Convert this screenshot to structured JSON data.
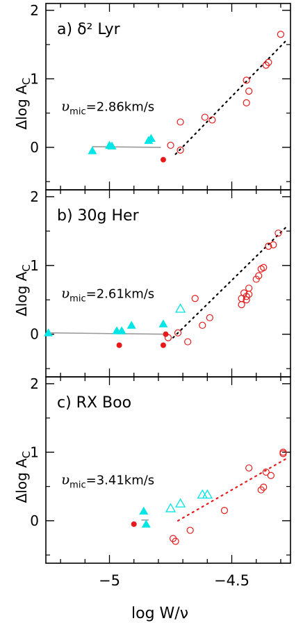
{
  "figure": {
    "xlabel": "log W/ν",
    "x_ticks": [
      -5,
      -4.5
    ],
    "x_tick_labels": [
      "−5",
      "−4.5"
    ]
  },
  "chart_data": [
    {
      "type": "scatter",
      "panel_label": "a)",
      "star_name": "δ² Lyr",
      "vmic_label": "υ",
      "vmic_sub": "mic",
      "vmic_value": "=2.86km/s",
      "ylabel": "Δlog A",
      "ylabel_sub": "C",
      "xlim": [
        -5.26,
        -4.26
      ],
      "ylim": [
        -0.62,
        2.1
      ],
      "y_ticks": [
        0,
        1,
        2
      ],
      "series": [
        {
          "name": "",
          "marker": "filled-triangle",
          "color": "#00e5e5",
          "points": [
            [
              -5.07,
              -0.05
            ],
            [
              -5.0,
              0.03
            ],
            [
              -4.99,
              0.02
            ],
            [
              -4.84,
              0.1
            ],
            [
              -4.83,
              0.13
            ]
          ]
        },
        {
          "name": "",
          "marker": "filled-circle",
          "color": "#e8191b",
          "points": [
            [
              -4.78,
              -0.18
            ]
          ]
        },
        {
          "name": "",
          "marker": "open-circle",
          "color": "#e8191b",
          "points": [
            [
              -4.75,
              0.03
            ],
            [
              -4.71,
              0.37
            ],
            [
              -4.71,
              -0.04
            ],
            [
              -4.61,
              0.44
            ],
            [
              -4.58,
              0.4
            ],
            [
              -4.44,
              0.98
            ],
            [
              -4.43,
              0.82
            ],
            [
              -4.44,
              0.65
            ],
            [
              -4.36,
              1.2
            ],
            [
              -4.35,
              1.24
            ],
            [
              -4.3,
              1.65
            ]
          ]
        }
      ],
      "fits": [
        {
          "style": "solid",
          "color": "#999999",
          "points": [
            [
              -5.07,
              0.01
            ],
            [
              -4.79,
              0.0
            ]
          ]
        },
        {
          "style": "dotted",
          "color": "#000000",
          "points": [
            [
              -4.73,
              -0.1
            ],
            [
              -4.28,
              1.55
            ]
          ]
        }
      ]
    },
    {
      "type": "scatter",
      "panel_label": "b)",
      "star_name": "30g Her",
      "vmic_label": "υ",
      "vmic_sub": "mic",
      "vmic_value": "=2.61km/s",
      "ylabel": "Δlog A",
      "ylabel_sub": "C",
      "xlim": [
        -5.26,
        -4.26
      ],
      "ylim": [
        -0.62,
        2.1
      ],
      "y_ticks": [
        0,
        1,
        2
      ],
      "series": [
        {
          "name": "",
          "marker": "filled-triangle",
          "color": "#00e5e5",
          "points": [
            [
              -5.25,
              0.02
            ],
            [
              -4.97,
              0.05
            ],
            [
              -4.95,
              0.05
            ],
            [
              -4.91,
              0.13
            ],
            [
              -4.78,
              0.15
            ]
          ]
        },
        {
          "name": "",
          "marker": "open-triangle",
          "color": "#00e5e5",
          "points": [
            [
              -4.71,
              0.37
            ]
          ]
        },
        {
          "name": "",
          "marker": "filled-circle",
          "color": "#e8191b",
          "points": [
            [
              -4.96,
              -0.16
            ],
            [
              -4.78,
              -0.16
            ],
            [
              -4.77,
              0.0
            ]
          ]
        },
        {
          "name": "",
          "marker": "open-circle",
          "color": "#e8191b",
          "points": [
            [
              -4.76,
              -0.05
            ],
            [
              -4.72,
              0.02
            ],
            [
              -4.68,
              -0.11
            ],
            [
              -4.65,
              0.52
            ],
            [
              -4.62,
              0.13
            ],
            [
              -4.59,
              0.24
            ],
            [
              -4.46,
              0.43
            ],
            [
              -4.46,
              0.52
            ],
            [
              -4.45,
              0.6
            ],
            [
              -4.44,
              0.55
            ],
            [
              -4.44,
              0.5
            ],
            [
              -4.43,
              0.67
            ],
            [
              -4.43,
              0.58
            ],
            [
              -4.4,
              0.8
            ],
            [
              -4.39,
              0.85
            ],
            [
              -4.38,
              0.95
            ],
            [
              -4.37,
              0.97
            ],
            [
              -4.35,
              1.28
            ],
            [
              -4.33,
              1.3
            ],
            [
              -4.31,
              1.47
            ]
          ]
        }
      ],
      "fits": [
        {
          "style": "solid",
          "color": "#999999",
          "points": [
            [
              -5.25,
              0.02
            ],
            [
              -4.76,
              0.0
            ]
          ]
        },
        {
          "style": "dotted",
          "color": "#000000",
          "points": [
            [
              -4.74,
              -0.05
            ],
            [
              -4.28,
              1.55
            ]
          ]
        }
      ]
    },
    {
      "type": "scatter",
      "panel_label": "c)",
      "star_name": "RX Boo",
      "vmic_label": "υ",
      "vmic_sub": "mic",
      "vmic_value": "=3.41km/s",
      "ylabel": "Δlog A",
      "ylabel_sub": "C",
      "xlim": [
        -5.26,
        -4.26
      ],
      "ylim": [
        -0.62,
        2.1
      ],
      "y_ticks": [
        0,
        1,
        2
      ],
      "series": [
        {
          "name": "",
          "marker": "filled-triangle",
          "color": "#00e5e5",
          "points": [
            [
              -4.86,
              0.14
            ],
            [
              -4.85,
              -0.05
            ]
          ]
        },
        {
          "name": "",
          "marker": "open-triangle",
          "color": "#00e5e5",
          "points": [
            [
              -4.75,
              0.18
            ],
            [
              -4.71,
              0.25
            ],
            [
              -4.62,
              0.38
            ],
            [
              -4.6,
              0.38
            ]
          ]
        },
        {
          "name": "",
          "marker": "filled-circle",
          "color": "#e8191b",
          "points": [
            [
              -4.9,
              -0.05
            ]
          ]
        },
        {
          "name": "",
          "marker": "open-circle",
          "color": "#e8191b",
          "points": [
            [
              -4.74,
              -0.26
            ],
            [
              -4.73,
              -0.3
            ],
            [
              -4.67,
              -0.14
            ],
            [
              -4.53,
              0.15
            ],
            [
              -4.43,
              0.77
            ],
            [
              -4.38,
              0.45
            ],
            [
              -4.37,
              0.49
            ],
            [
              -4.36,
              0.71
            ],
            [
              -4.34,
              0.66
            ],
            [
              -4.29,
              1.0
            ],
            [
              -4.29,
              0.98
            ]
          ]
        }
      ],
      "fits": [
        {
          "style": "solid",
          "color": "#999999",
          "points": [
            [
              -4.87,
              0.01
            ],
            [
              -4.84,
              0.01
            ]
          ]
        },
        {
          "style": "dotted",
          "color": "#e8191b",
          "points": [
            [
              -4.72,
              0.0
            ],
            [
              -4.28,
              0.9
            ]
          ]
        }
      ]
    }
  ]
}
